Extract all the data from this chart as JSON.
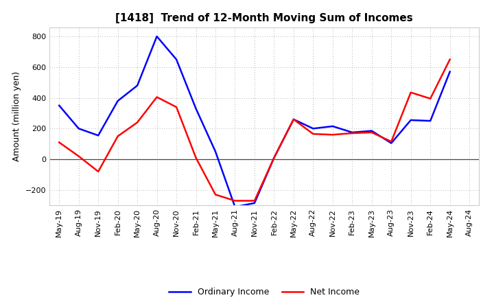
{
  "title": "[1418]  Trend of 12-Month Moving Sum of Incomes",
  "ylabel": "Amount (million yen)",
  "background_color": "#ffffff",
  "grid_color": "#999999",
  "x_labels": [
    "May-19",
    "Aug-19",
    "Nov-19",
    "Feb-20",
    "May-20",
    "Aug-20",
    "Nov-20",
    "Feb-21",
    "May-21",
    "Aug-21",
    "Nov-21",
    "Feb-22",
    "May-22",
    "Aug-22",
    "Nov-22",
    "Feb-23",
    "May-23",
    "Aug-23",
    "Nov-23",
    "Feb-24",
    "May-24",
    "Aug-24"
  ],
  "ordinary_income": [
    350,
    200,
    155,
    380,
    480,
    800,
    650,
    330,
    50,
    -310,
    -285,
    10,
    260,
    200,
    215,
    175,
    185,
    105,
    255,
    250,
    570,
    null
  ],
  "net_income": [
    110,
    20,
    -80,
    150,
    240,
    405,
    340,
    10,
    -230,
    -270,
    -270,
    10,
    260,
    165,
    160,
    170,
    175,
    115,
    435,
    395,
    650,
    null
  ],
  "ylim": [
    -300,
    860
  ],
  "yticks": [
    -200,
    0,
    200,
    400,
    600,
    800
  ],
  "ordinary_color": "#0000ff",
  "net_color": "#ff0000",
  "line_width": 1.8,
  "title_fontsize": 11,
  "ylabel_fontsize": 9,
  "legend_fontsize": 9,
  "tick_fontsize": 8
}
